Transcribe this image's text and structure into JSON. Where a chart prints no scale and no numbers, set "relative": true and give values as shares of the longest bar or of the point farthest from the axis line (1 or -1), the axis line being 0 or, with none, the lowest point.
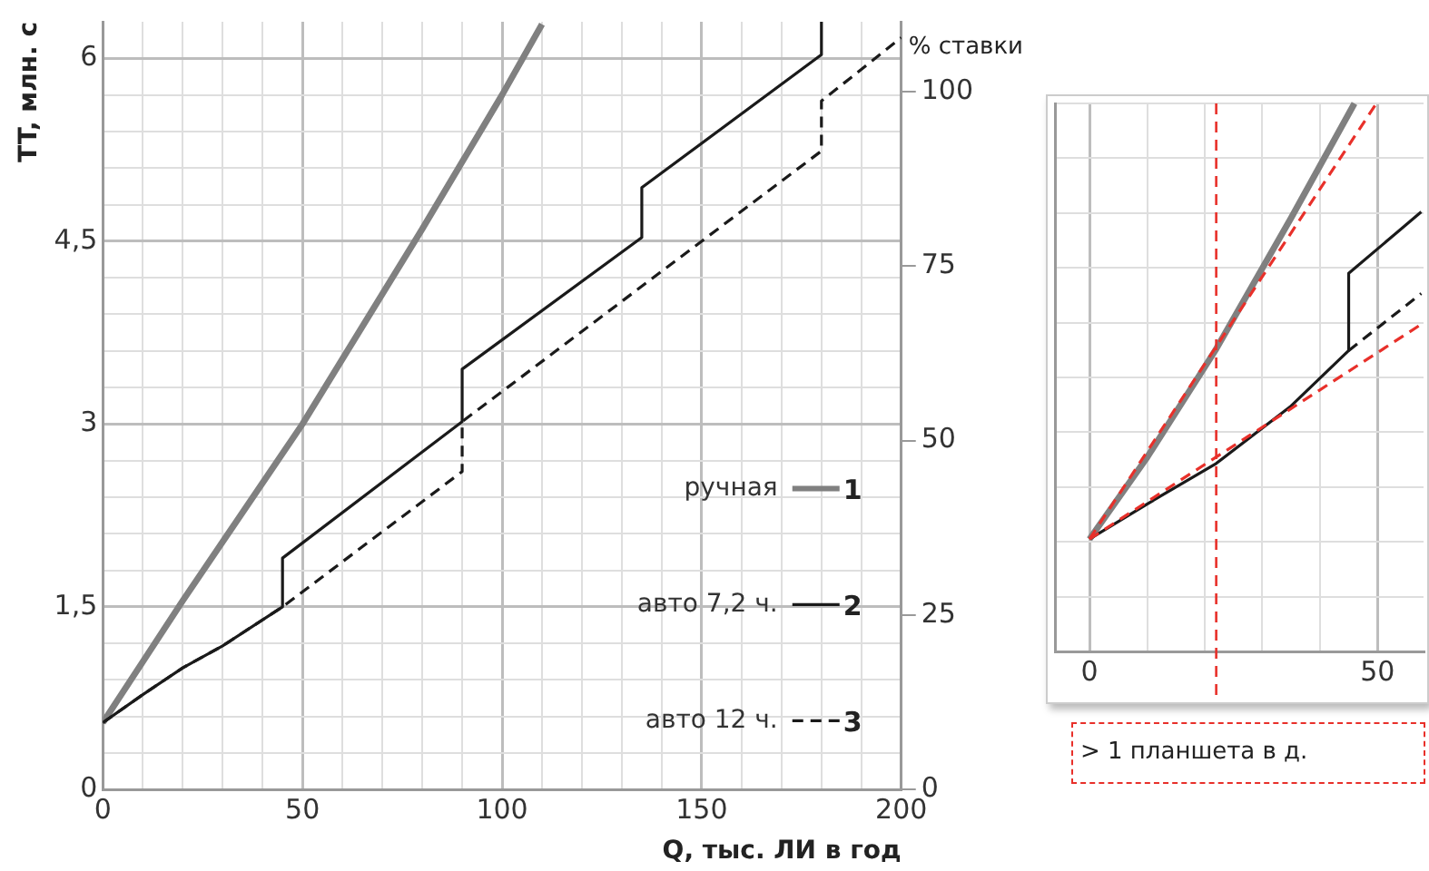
{
  "chart_data": [
    {
      "type": "line",
      "xlabel": "Q, тыс. ЛИ в год",
      "ylabel": "TT, млн. с",
      "y2label": "% ставки",
      "xlim": [
        0,
        200
      ],
      "xticks": [
        0,
        {
          "value": 10,
          "label": null
        },
        {
          "value": 20,
          "label": null
        },
        {
          "value": 30,
          "label": null
        },
        {
          "value": 40,
          "label": null
        },
        50,
        {
          "value": 60,
          "label": null
        },
        {
          "value": 70,
          "label": null
        },
        {
          "value": 80,
          "label": null
        },
        {
          "value": 90,
          "label": null
        },
        100,
        {
          "value": 110,
          "label": null
        },
        {
          "value": 120,
          "label": null
        },
        {
          "value": 130,
          "label": null
        },
        {
          "value": 140,
          "label": null
        },
        150,
        {
          "value": 160,
          "label": null
        },
        {
          "value": 170,
          "label": null
        },
        {
          "value": 180,
          "label": null
        },
        {
          "value": 190,
          "label": null
        },
        200
      ],
      "ylim": [
        0,
        6.3
      ],
      "yticks": [
        0,
        {
          "value": 0.3,
          "label": null
        },
        {
          "value": 0.6,
          "label": null
        },
        {
          "value": 0.9,
          "label": null
        },
        {
          "value": 1.2,
          "label": null
        },
        {
          "value": 1.5,
          "label": "1,5"
        },
        {
          "value": 1.8,
          "label": null
        },
        {
          "value": 2.1,
          "label": null
        },
        {
          "value": 2.4,
          "label": null
        },
        {
          "value": 2.7,
          "label": null
        },
        3,
        {
          "value": 3.3,
          "label": null
        },
        {
          "value": 3.6,
          "label": null
        },
        {
          "value": 3.9,
          "label": null
        },
        {
          "value": 4.2,
          "label": null
        },
        {
          "value": 4.5,
          "label": "4,5"
        },
        {
          "value": 4.8,
          "label": null
        },
        {
          "value": 5.1,
          "label": null
        },
        {
          "value": 5.4,
          "label": null
        },
        {
          "value": 5.7,
          "label": null
        },
        6
      ],
      "y2lim": [
        0,
        110
      ],
      "y2ticks": [
        0,
        25,
        50,
        75,
        100
      ],
      "grid": true,
      "legend": "bottom right",
      "marker": "none",
      "annotations": [
        "1",
        "2",
        "3"
      ],
      "series": [
        {
          "name": "ручная",
          "color": "#808080",
          "line_style": "solid",
          "x": [
            0,
            10,
            20,
            50,
            80,
            100,
            110
          ],
          "values": [
            0.55,
            1.05,
            1.55,
            3.0,
            4.6,
            5.7,
            6.28
          ]
        },
        {
          "name": "авто 7,2 ч.",
          "color": "#1a1a1a",
          "line_style": "solid",
          "x": [
            0,
            10,
            20,
            30,
            45,
            45,
            90,
            90,
            135,
            135,
            180,
            180
          ],
          "values": [
            0.55,
            0.78,
            1.0,
            1.18,
            1.5,
            1.9,
            3.02,
            3.45,
            4.53,
            4.94,
            6.03,
            6.3
          ]
        },
        {
          "name": "авто 12 ч.",
          "color": "#1a1a1a",
          "line_style": "dashed",
          "x": [
            0,
            10,
            20,
            30,
            45,
            90,
            90,
            180,
            180,
            200
          ],
          "values": [
            0.55,
            0.78,
            1.0,
            1.18,
            1.5,
            2.61,
            3.02,
            5.24,
            5.65,
            6.17
          ]
        }
      ]
    },
    {
      "type": "line",
      "relative": true,
      "xlim": [
        -6,
        58
      ],
      "xticks": [
        0,
        {
          "value": 10,
          "label": null
        },
        {
          "value": 20,
          "label": null
        },
        {
          "value": 30,
          "label": null
        },
        {
          "value": 40,
          "label": null
        },
        50
      ],
      "grid": true,
      "tick_labels": "x",
      "marker": "none",
      "ref_lines": [
        {
          "axis": "x",
          "value": 22,
          "label": "> 1 планшета в д.",
          "color": "#e8302a",
          "line_style": "dashed"
        }
      ],
      "series": [
        {
          "color": "#808080",
          "line_style": "solid",
          "x": [
            0,
            10,
            22,
            35,
            46
          ],
          "values": [
            0.205,
            0.354,
            0.552,
            0.791,
            1
          ]
        },
        {
          "color": "#1a1a1a",
          "line_style": "solid",
          "x": [
            0,
            10,
            22,
            35,
            45,
            45,
            57.6
          ],
          "values": [
            0.205,
            0.269,
            0.343,
            0.448,
            0.549,
            0.69,
            0.802
          ]
        },
        {
          "color": "#1a1a1a",
          "line_style": "dashed",
          "x": [
            45,
            57.6
          ],
          "values": [
            0.549,
            0.653
          ]
        },
        {
          "color": "#e8302a",
          "line_style": "dashed",
          "x": [
            0,
            49.8
          ],
          "values": [
            0.205,
            1
          ]
        },
        {
          "color": "#e8302a",
          "line_style": "dashed",
          "x": [
            0,
            57.6
          ],
          "values": [
            0.205,
            0.597
          ]
        }
      ]
    }
  ]
}
